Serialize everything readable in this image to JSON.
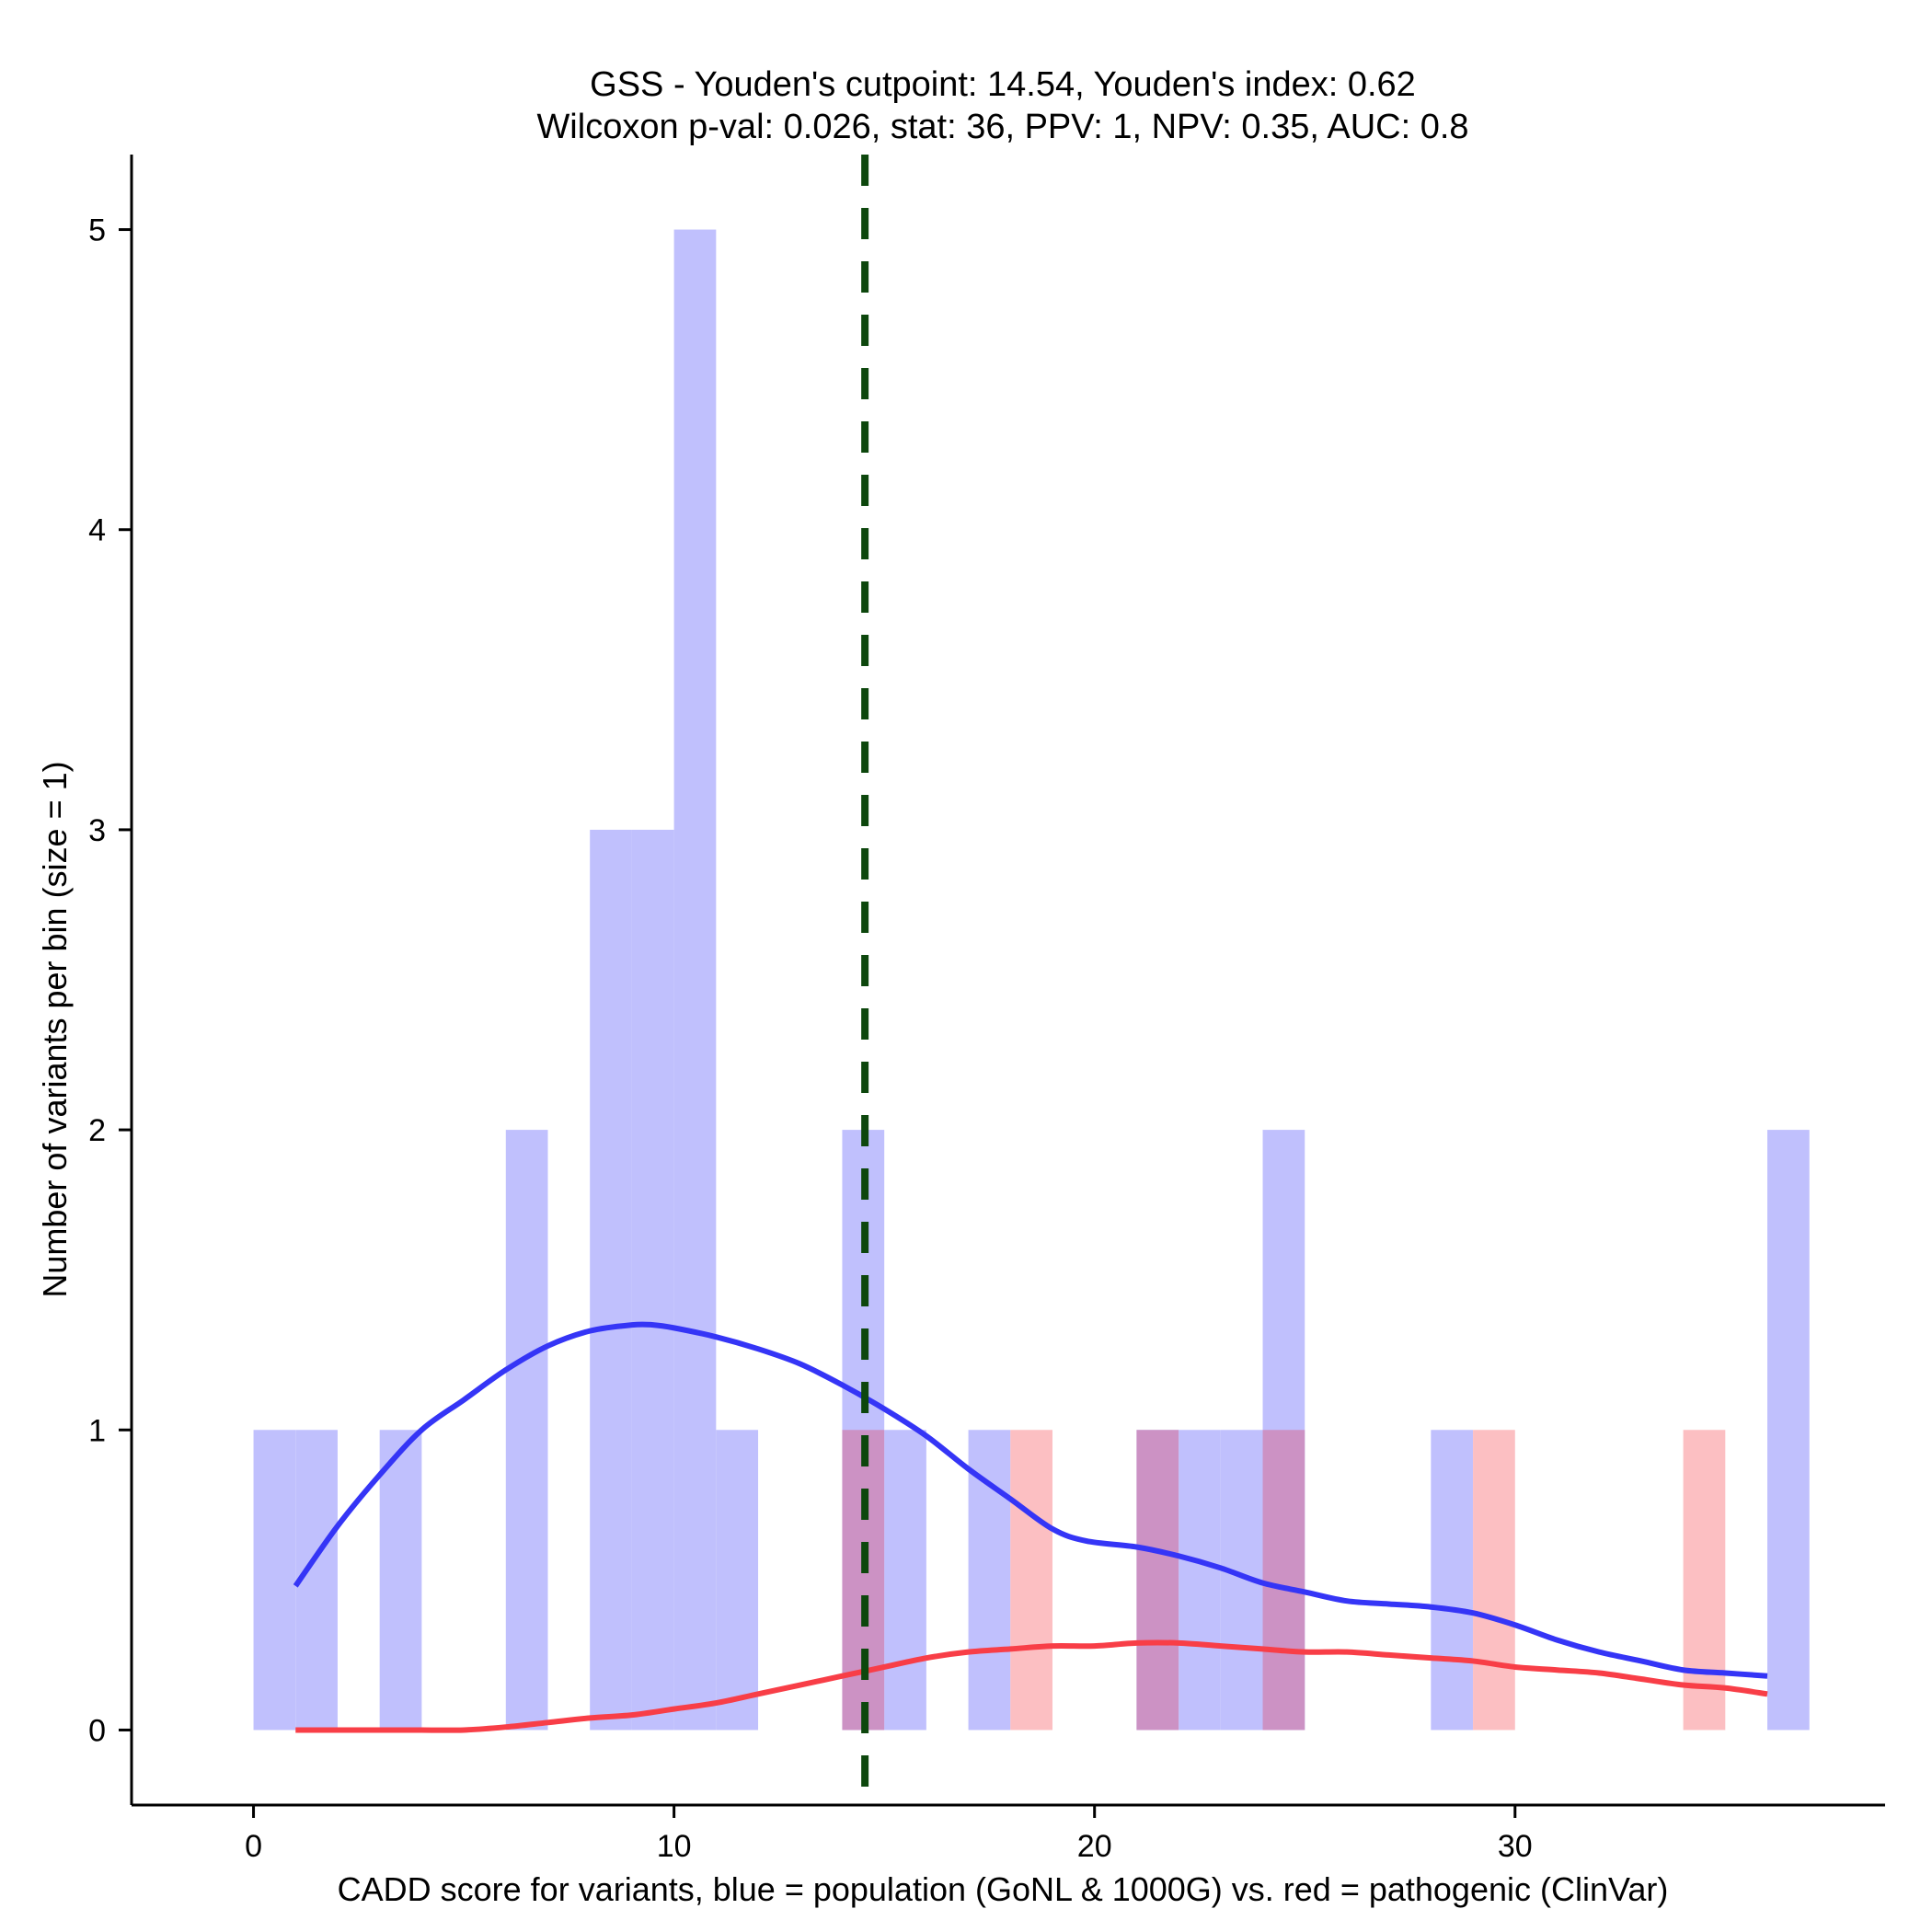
{
  "chart_data": {
    "type": "histogram",
    "title": "GSS - Youden's cutpoint: 14.54, Youden's index: 0.62",
    "subtitle": "Wilcoxon p-val: 0.026, stat: 36, PPV: 1, NPV: 0.35, AUC: 0.8",
    "xlabel": "CADD score for variants, blue = population (GoNL & 1000G) vs. red = pathogenic (ClinVar)",
    "ylabel": "Number of variants per bin (size = 1)",
    "xlim": [
      -2.9,
      38.8
    ],
    "ylim": [
      -0.25,
      5.25
    ],
    "xticks": [
      0,
      10,
      20,
      30
    ],
    "yticks": [
      0,
      1,
      2,
      3,
      4,
      5
    ],
    "grid": false,
    "cutpoint": 14.54,
    "colors": {
      "population_bar": "#c0c0fd",
      "pathogenic_bar": "#fcbfc2",
      "overlap_bar": "#cc92c4",
      "population_line": "#3535f6",
      "pathogenic_line": "#f83e47",
      "cutpoint_line": "#0d470d"
    },
    "series": [
      {
        "name": "population (GoNL & 1000G)",
        "bins": [
          [
            0,
            1
          ],
          [
            1,
            1
          ],
          [
            3,
            1
          ],
          [
            6,
            2
          ],
          [
            8,
            3
          ],
          [
            9,
            3
          ],
          [
            10,
            5
          ],
          [
            11,
            1
          ],
          [
            14,
            2
          ],
          [
            15,
            1
          ],
          [
            17,
            1
          ],
          [
            21,
            1
          ],
          [
            22,
            1
          ],
          [
            23,
            1
          ],
          [
            24,
            2
          ],
          [
            28,
            1
          ],
          [
            36,
            2
          ]
        ],
        "density_x": [
          1,
          2,
          3,
          4,
          5,
          6,
          7,
          8,
          9,
          9.5,
          10,
          11,
          12,
          13,
          14,
          15,
          16,
          17,
          18,
          19,
          19.8,
          21,
          22,
          23,
          24,
          25,
          26,
          27,
          28,
          29,
          30,
          31,
          32,
          33,
          34,
          35,
          36
        ],
        "density_y": [
          0.48,
          0.68,
          0.85,
          1.0,
          1.1,
          1.2,
          1.28,
          1.33,
          1.35,
          1.35,
          1.34,
          1.31,
          1.27,
          1.22,
          1.15,
          1.07,
          0.98,
          0.87,
          0.77,
          0.67,
          0.63,
          0.61,
          0.58,
          0.54,
          0.49,
          0.46,
          0.43,
          0.42,
          0.41,
          0.39,
          0.35,
          0.3,
          0.26,
          0.23,
          0.2,
          0.19,
          0.18
        ]
      },
      {
        "name": "pathogenic (ClinVar)",
        "bins": [
          [
            14,
            1
          ],
          [
            18,
            1
          ],
          [
            21,
            1
          ],
          [
            24,
            1
          ],
          [
            29,
            1
          ],
          [
            34,
            1
          ]
        ],
        "density_x": [
          1,
          2,
          3,
          4,
          5,
          6,
          7,
          8,
          9,
          10,
          11,
          12,
          13,
          14,
          15,
          16,
          17,
          18,
          19,
          20,
          21,
          22,
          23,
          24,
          25,
          26,
          27,
          28,
          29,
          30,
          31,
          32,
          33,
          34,
          35,
          36
        ],
        "density_y": [
          0,
          0,
          0,
          0,
          0,
          0.01,
          0.025,
          0.04,
          0.05,
          0.07,
          0.09,
          0.12,
          0.15,
          0.18,
          0.21,
          0.24,
          0.26,
          0.27,
          0.28,
          0.28,
          0.29,
          0.29,
          0.28,
          0.27,
          0.26,
          0.26,
          0.25,
          0.24,
          0.23,
          0.21,
          0.2,
          0.19,
          0.17,
          0.15,
          0.14,
          0.12
        ]
      }
    ]
  }
}
